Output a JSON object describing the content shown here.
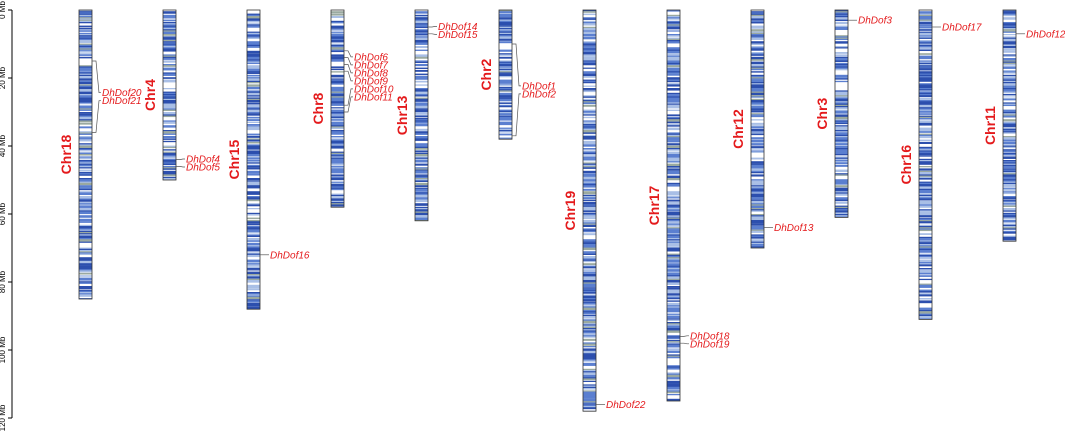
{
  "axis": {
    "unit": "Mb",
    "max": 120,
    "ticks": [
      {
        "value": 0,
        "label": "0 Mb"
      },
      {
        "value": 20,
        "label": "20 Mb"
      },
      {
        "value": 40,
        "label": "40 Mb"
      },
      {
        "value": 60,
        "label": "60 Mb"
      },
      {
        "value": 80,
        "label": "80 Mb"
      },
      {
        "value": 100,
        "label": "100 Mb"
      },
      {
        "value": 120,
        "label": "120 Mb"
      }
    ]
  },
  "colors": {
    "label": "#e41a1c",
    "band_dark": "#2c4fae",
    "band_mid": "#5b7fd0",
    "band_light": "#a9bfe6",
    "band_gray": "#9aa9a0",
    "outline": "#333333"
  },
  "chromosomes": [
    {
      "name": "Chr18",
      "length": 85,
      "genes": [
        {
          "name": "DhDof20",
          "pos": 15
        },
        {
          "name": "DhDof21",
          "pos": 36
        }
      ]
    },
    {
      "name": "Chr4",
      "length": 50,
      "genes": [
        {
          "name": "DhDof4",
          "pos": 44
        },
        {
          "name": "DhDof5",
          "pos": 46
        }
      ]
    },
    {
      "name": "Chr15",
      "length": 88,
      "genes": [
        {
          "name": "DhDof16",
          "pos": 72
        }
      ]
    },
    {
      "name": "Chr8",
      "length": 58,
      "genes": [
        {
          "name": "DhDof6",
          "pos": 12
        },
        {
          "name": "DhDof7",
          "pos": 14
        },
        {
          "name": "DhDof8",
          "pos": 16
        },
        {
          "name": "DhDof9",
          "pos": 18
        },
        {
          "name": "DhDof10",
          "pos": 28
        },
        {
          "name": "DhDof11",
          "pos": 30
        }
      ]
    },
    {
      "name": "Chr13",
      "length": 62,
      "genes": [
        {
          "name": "DhDof14",
          "pos": 5
        },
        {
          "name": "DhDof15",
          "pos": 7
        }
      ]
    },
    {
      "name": "Chr2",
      "length": 38,
      "genes": [
        {
          "name": "DhDof1",
          "pos": 10
        },
        {
          "name": "DhDof2",
          "pos": 37
        }
      ]
    },
    {
      "name": "Chr19",
      "length": 118,
      "genes": [
        {
          "name": "DhDof22",
          "pos": 116
        }
      ]
    },
    {
      "name": "Chr17",
      "length": 115,
      "genes": [
        {
          "name": "DhDof18",
          "pos": 96
        },
        {
          "name": "DhDof19",
          "pos": 98
        }
      ]
    },
    {
      "name": "Chr12",
      "length": 70,
      "genes": [
        {
          "name": "DhDof13",
          "pos": 64
        }
      ]
    },
    {
      "name": "Chr3",
      "length": 61,
      "genes": [
        {
          "name": "DhDof3",
          "pos": 3
        }
      ]
    },
    {
      "name": "Chr16",
      "length": 91,
      "genes": [
        {
          "name": "DhDof17",
          "pos": 5
        }
      ]
    },
    {
      "name": "Chr11",
      "length": 68,
      "genes": [
        {
          "name": "DhDof12",
          "pos": 7
        }
      ]
    }
  ]
}
